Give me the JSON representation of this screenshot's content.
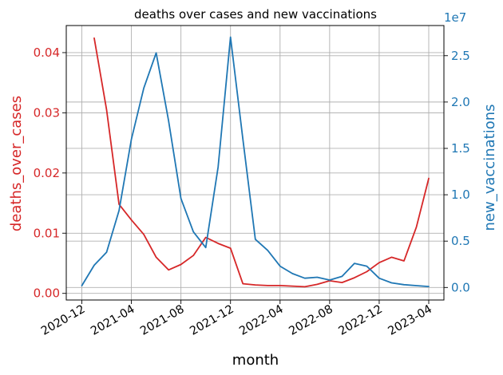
{
  "chart_data": {
    "type": "line",
    "title": "deaths over cases and new vaccinations",
    "xlabel": "month",
    "x_ticks": [
      "2020-12",
      "2021-04",
      "2021-08",
      "2021-12",
      "2022-04",
      "2022-08",
      "2022-12",
      "2023-04"
    ],
    "grid": true,
    "x": [
      "2020-12",
      "2021-01",
      "2021-02",
      "2021-03",
      "2021-04",
      "2021-05",
      "2021-06",
      "2021-07",
      "2021-08",
      "2021-09",
      "2021-10",
      "2021-11",
      "2021-12",
      "2022-01",
      "2022-02",
      "2022-03",
      "2022-04",
      "2022-05",
      "2022-06",
      "2022-07",
      "2022-08",
      "2022-09",
      "2022-10",
      "2022-11",
      "2022-12",
      "2023-01",
      "2023-02",
      "2023-03",
      "2023-04"
    ],
    "series": [
      {
        "name": "deaths_over_cases",
        "axis": "left",
        "color": "#d62728",
        "values": [
          null,
          0.0424,
          0.0305,
          0.0148,
          0.0122,
          0.0098,
          0.006,
          0.0039,
          0.0048,
          0.0063,
          0.0093,
          0.0083,
          0.0075,
          0.0016,
          0.0014,
          0.0013,
          0.0013,
          0.0012,
          0.0011,
          0.0015,
          0.0021,
          0.0018,
          0.0026,
          0.0036,
          0.0051,
          0.006,
          0.0054,
          0.011,
          0.0191
        ]
      },
      {
        "name": "new_vaccinations",
        "axis": "right",
        "color": "#1f77b4",
        "values": [
          200000,
          2400000,
          3800000,
          8300000,
          16000000,
          21500000,
          25300000,
          18000000,
          9600000,
          6000000,
          4300000,
          13000000,
          27000000,
          16000000,
          5200000,
          4000000,
          2300000,
          1500000,
          1000000,
          1100000,
          800000,
          1200000,
          2600000,
          2300000,
          1000000,
          500000,
          300000,
          200000,
          100000
        ]
      }
    ],
    "y_left": {
      "label": "deaths_over_cases",
      "color": "#d62728",
      "ylim": [
        -0.0011,
        0.0445
      ],
      "ticks": [
        "0.00",
        "0.01",
        "0.02",
        "0.03",
        "0.04"
      ]
    },
    "y_right": {
      "label": "new_vaccinations",
      "color": "#1f77b4",
      "ylim": [
        -1350000,
        28250000
      ],
      "ticks": [
        "0.0",
        "0.5",
        "1.0",
        "1.5",
        "2.0",
        "2.5"
      ],
      "offset_text": "1e7"
    }
  }
}
